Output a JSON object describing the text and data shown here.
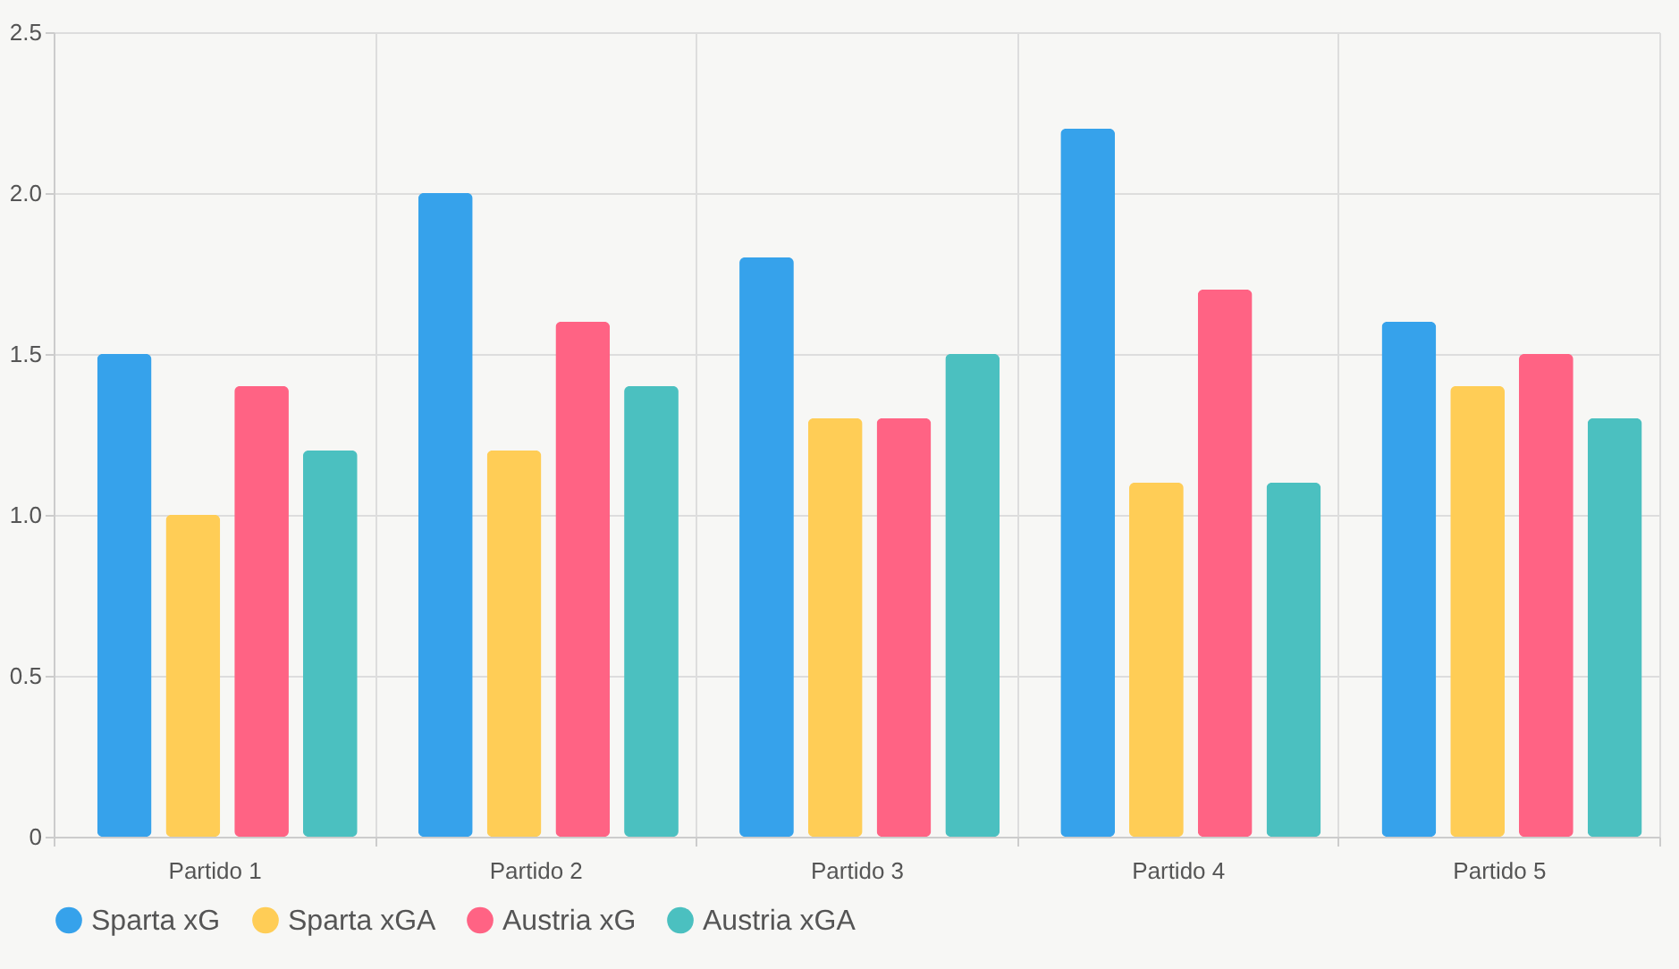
{
  "chart_data": {
    "type": "bar",
    "categories": [
      "Partido 1",
      "Partido 2",
      "Partido 3",
      "Partido 4",
      "Partido 5"
    ],
    "series": [
      {
        "name": "Sparta xG",
        "color": "#36a2eb",
        "values": [
          1.5,
          2.0,
          1.8,
          2.2,
          1.6
        ]
      },
      {
        "name": "Sparta xGA",
        "color": "#ffcd56",
        "values": [
          1.0,
          1.2,
          1.3,
          1.1,
          1.4
        ]
      },
      {
        "name": "Austria xG",
        "color": "#ff6384",
        "values": [
          1.4,
          1.6,
          1.3,
          1.7,
          1.5
        ]
      },
      {
        "name": "Austria xGA",
        "color": "#4bc0c0",
        "values": [
          1.2,
          1.4,
          1.5,
          1.1,
          1.3
        ]
      }
    ],
    "ylim": [
      0,
      2.5
    ],
    "yticks": [
      {
        "value": 0,
        "label": "0"
      },
      {
        "value": 0.5,
        "label": "0.5"
      },
      {
        "value": 1,
        "label": "1.0"
      },
      {
        "value": 1.5,
        "label": "1.5"
      },
      {
        "value": 2,
        "label": "2.0"
      },
      {
        "value": 2.5,
        "label": "2.5"
      }
    ],
    "grid": true,
    "legend": "bottom"
  }
}
